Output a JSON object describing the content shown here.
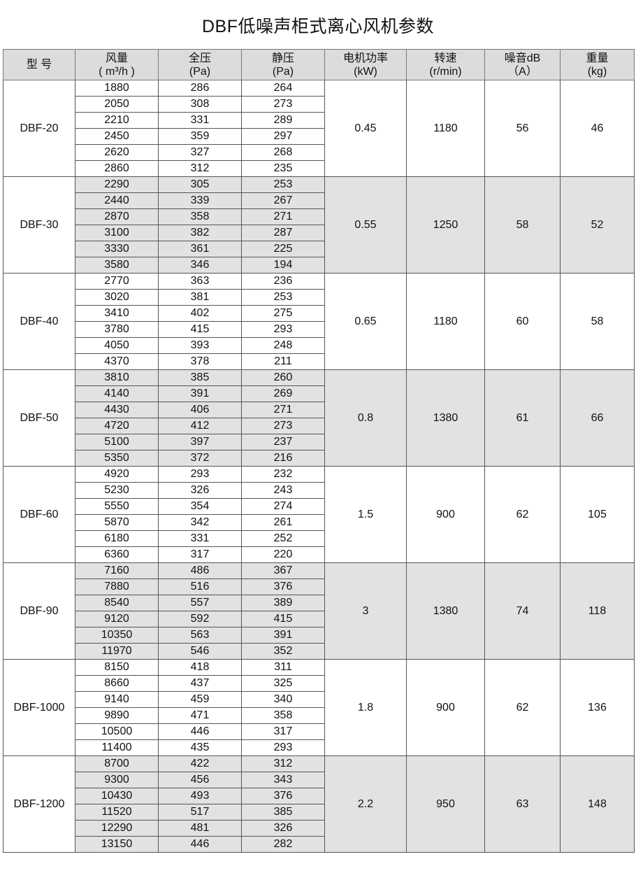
{
  "title": "DBF低噪声柜式离心风机参数",
  "headers": [
    {
      "l1": "型  号",
      "l2": ""
    },
    {
      "l1": "风量",
      "l2": "( m³/h )"
    },
    {
      "l1": "全压",
      "l2": "(Pa)"
    },
    {
      "l1": "静压",
      "l2": "(Pa)"
    },
    {
      "l1": "电机功率",
      "l2": "(kW)"
    },
    {
      "l1": "转速",
      "l2": "(r/min)"
    },
    {
      "l1": "噪音dB",
      "l2": "（A）"
    },
    {
      "l1": "重量",
      "l2": "(kg)"
    }
  ],
  "colors": {
    "header_bg": "#dcdcdc",
    "shade_bg": "#e2e2e2"
  },
  "models": [
    {
      "model": "DBF-20",
      "power": "0.45",
      "speed": "1180",
      "noise": "56",
      "weight": "46",
      "rows": [
        [
          "1880",
          "286",
          "264"
        ],
        [
          "2050",
          "308",
          "273"
        ],
        [
          "2210",
          "331",
          "289"
        ],
        [
          "2450",
          "359",
          "297"
        ],
        [
          "2620",
          "327",
          "268"
        ],
        [
          "2860",
          "312",
          "235"
        ]
      ]
    },
    {
      "model": "DBF-30",
      "power": "0.55",
      "speed": "1250",
      "noise": "58",
      "weight": "52",
      "rows": [
        [
          "2290",
          "305",
          "253"
        ],
        [
          "2440",
          "339",
          "267"
        ],
        [
          "2870",
          "358",
          "271"
        ],
        [
          "3100",
          "382",
          "287"
        ],
        [
          "3330",
          "361",
          "225"
        ],
        [
          "3580",
          "346",
          "194"
        ]
      ]
    },
    {
      "model": "DBF-40",
      "power": "0.65",
      "speed": "1180",
      "noise": "60",
      "weight": "58",
      "rows": [
        [
          "2770",
          "363",
          "236"
        ],
        [
          "3020",
          "381",
          "253"
        ],
        [
          "3410",
          "402",
          "275"
        ],
        [
          "3780",
          "415",
          "293"
        ],
        [
          "4050",
          "393",
          "248"
        ],
        [
          "4370",
          "378",
          "211"
        ]
      ]
    },
    {
      "model": "DBF-50",
      "power": "0.8",
      "speed": "1380",
      "noise": "61",
      "weight": "66",
      "rows": [
        [
          "3810",
          "385",
          "260"
        ],
        [
          "4140",
          "391",
          "269"
        ],
        [
          "4430",
          "406",
          "271"
        ],
        [
          "4720",
          "412",
          "273"
        ],
        [
          "5100",
          "397",
          "237"
        ],
        [
          "5350",
          "372",
          "216"
        ]
      ]
    },
    {
      "model": "DBF-60",
      "power": "1.5",
      "speed": "900",
      "noise": "62",
      "weight": "105",
      "rows": [
        [
          "4920",
          "293",
          "232"
        ],
        [
          "5230",
          "326",
          "243"
        ],
        [
          "5550",
          "354",
          "274"
        ],
        [
          "5870",
          "342",
          "261"
        ],
        [
          "6180",
          "331",
          "252"
        ],
        [
          "6360",
          "317",
          "220"
        ]
      ]
    },
    {
      "model": "DBF-90",
      "power": "3",
      "speed": "1380",
      "noise": "74",
      "weight": "118",
      "rows": [
        [
          "7160",
          "486",
          "367"
        ],
        [
          "7880",
          "516",
          "376"
        ],
        [
          "8540",
          "557",
          "389"
        ],
        [
          "9120",
          "592",
          "415"
        ],
        [
          "10350",
          "563",
          "391"
        ],
        [
          "11970",
          "546",
          "352"
        ]
      ]
    },
    {
      "model": "DBF-1000",
      "power": "1.8",
      "speed": "900",
      "noise": "62",
      "weight": "136",
      "rows": [
        [
          "8150",
          "418",
          "311"
        ],
        [
          "8660",
          "437",
          "325"
        ],
        [
          "9140",
          "459",
          "340"
        ],
        [
          "9890",
          "471",
          "358"
        ],
        [
          "10500",
          "446",
          "317"
        ],
        [
          "11400",
          "435",
          "293"
        ]
      ]
    },
    {
      "model": "DBF-1200",
      "power": "2.2",
      "speed": "950",
      "noise": "63",
      "weight": "148",
      "rows": [
        [
          "8700",
          "422",
          "312"
        ],
        [
          "9300",
          "456",
          "343"
        ],
        [
          "10430",
          "493",
          "376"
        ],
        [
          "11520",
          "517",
          "385"
        ],
        [
          "12290",
          "481",
          "326"
        ],
        [
          "13150",
          "446",
          "282"
        ]
      ]
    }
  ]
}
